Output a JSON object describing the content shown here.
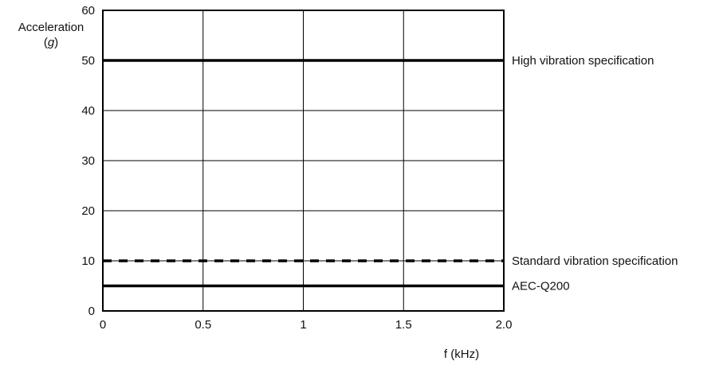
{
  "chart_data": {
    "type": "line",
    "xlabel": "f (kHz)",
    "ylabel_line1": "Acceleration",
    "ylabel_unit": "g",
    "xlim": [
      0,
      2.0
    ],
    "ylim": [
      0,
      60
    ],
    "xticks": [
      0,
      0.5,
      1,
      1.5,
      2.0
    ],
    "xtick_labels": [
      "0",
      "0.5",
      "1",
      "1.5",
      "2.0"
    ],
    "yticks": [
      0,
      10,
      20,
      30,
      40,
      50,
      60
    ],
    "ytick_labels": [
      "0",
      "10",
      "20",
      "30",
      "40",
      "50",
      "60"
    ],
    "grid": true,
    "series": [
      {
        "name": "High vibration specification",
        "x": [
          0,
          2.0
        ],
        "y": [
          50,
          50
        ],
        "style": "solid",
        "color": "#000000"
      },
      {
        "name": "Standard vibration specification",
        "x": [
          0,
          2.0
        ],
        "y": [
          10,
          10
        ],
        "style": "dashed",
        "color": "#000000"
      },
      {
        "name": "AEC-Q200",
        "x": [
          0,
          2.0
        ],
        "y": [
          5,
          5
        ],
        "style": "solid",
        "color": "#000000"
      }
    ]
  }
}
